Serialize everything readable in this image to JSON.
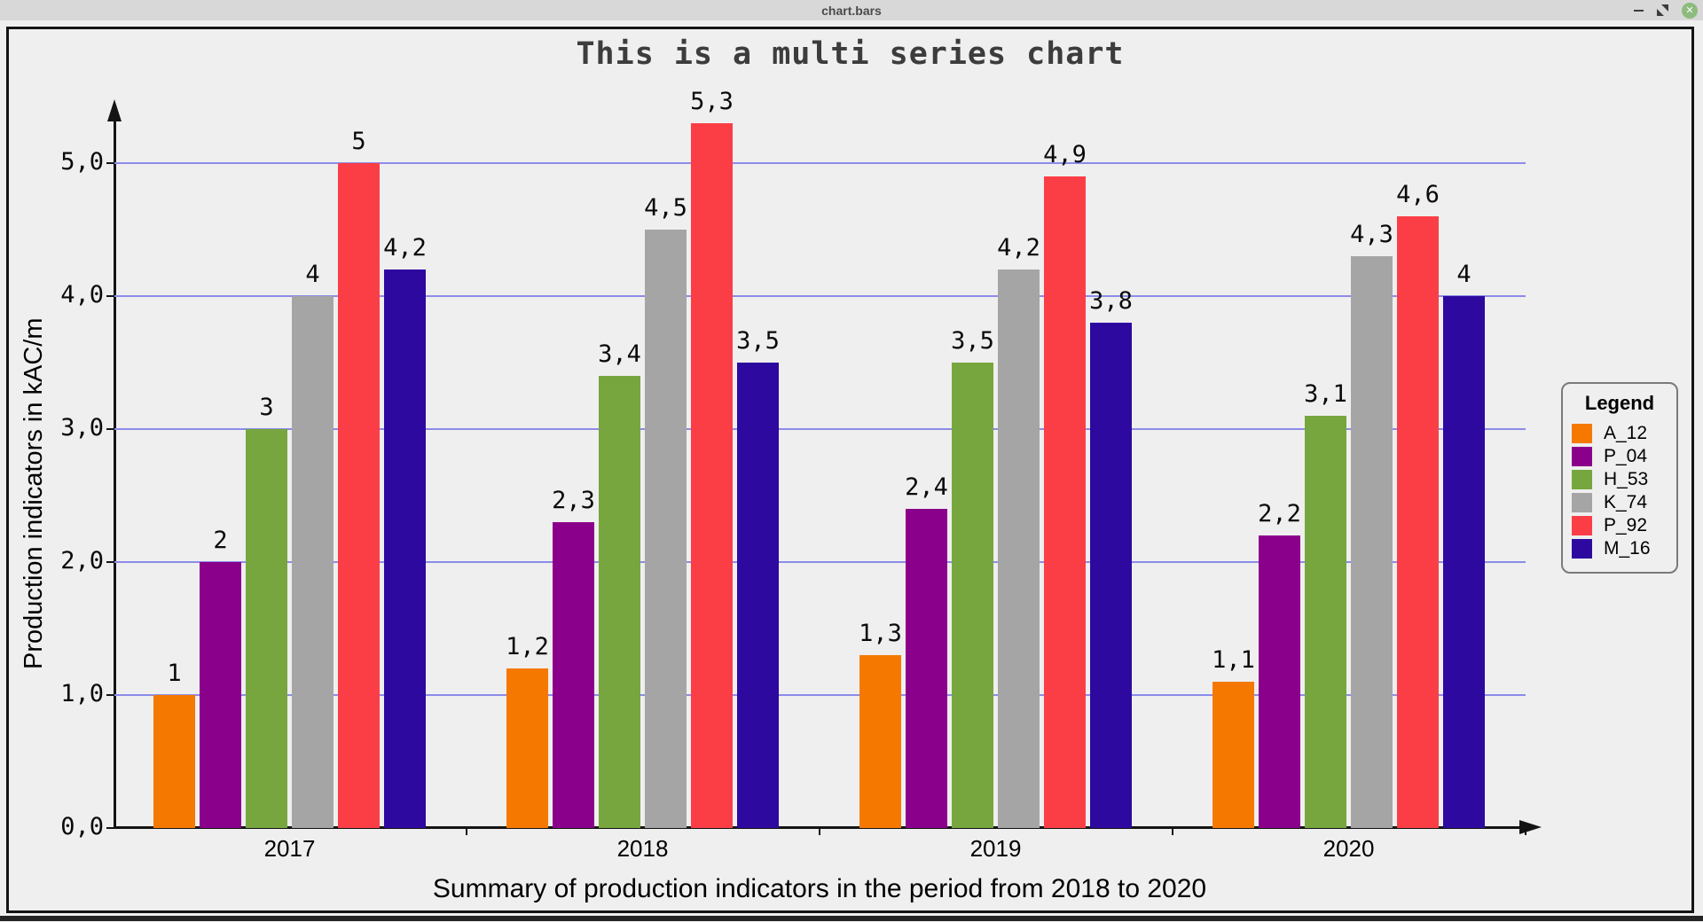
{
  "window": {
    "title": "chart.bars",
    "controls": {
      "minimize_icon": "horizontal-bar",
      "restore_icon": "diagonal-resize-triangles",
      "close_icon": "✕"
    }
  },
  "chart_data": {
    "type": "bar",
    "title": "This is a multi series chart",
    "xlabel": "Summary of production indicators in the period from 2018 to 2020",
    "ylabel": "Production indicators in kAC/m",
    "categories": [
      "2017",
      "2018",
      "2019",
      "2020"
    ],
    "series": [
      {
        "name": "A_12",
        "color": "#f57900",
        "values": [
          1.0,
          1.2,
          1.3,
          1.1
        ],
        "labels": [
          "1",
          "1,2",
          "1,3",
          "1,1"
        ]
      },
      {
        "name": "P_04",
        "color": "#8b008b",
        "values": [
          2.0,
          2.3,
          2.4,
          2.2
        ],
        "labels": [
          "2",
          "2,3",
          "2,4",
          "2,2"
        ]
      },
      {
        "name": "H_53",
        "color": "#77a63e",
        "values": [
          3.0,
          3.4,
          3.5,
          3.1
        ],
        "labels": [
          "3",
          "3,4",
          "3,5",
          "3,1"
        ]
      },
      {
        "name": "K_74",
        "color": "#a5a5a5",
        "values": [
          4.0,
          4.5,
          4.2,
          4.3
        ],
        "labels": [
          "4",
          "4,5",
          "4,2",
          "4,3"
        ]
      },
      {
        "name": "P_92",
        "color": "#fb3e46",
        "values": [
          5.0,
          5.3,
          4.9,
          4.6
        ],
        "labels": [
          "5",
          "5,3",
          "4,9",
          "4,6"
        ]
      },
      {
        "name": "M_16",
        "color": "#2d09a0",
        "values": [
          4.2,
          3.5,
          3.8,
          4.0
        ],
        "labels": [
          "4,2",
          "3,5",
          "3,8",
          "4"
        ]
      }
    ],
    "yticks": [
      "0,0",
      "1,0",
      "2,0",
      "3,0",
      "4,0",
      "5,0"
    ],
    "ytick_values": [
      0,
      1,
      2,
      3,
      4,
      5
    ],
    "ylim": [
      0,
      5.5
    ],
    "grid": true,
    "gridline_color": "#8c8cea",
    "plot_background": "#efefef",
    "decimal_separator": ",",
    "legend": {
      "title": "Legend",
      "position": "right"
    }
  }
}
